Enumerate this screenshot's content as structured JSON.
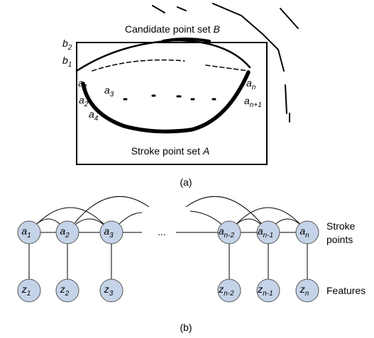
{
  "panel_a": {
    "candidate_label": {
      "text": "Candidate point set",
      "var": "B"
    },
    "stroke_label": {
      "text": "Stroke point set",
      "var": "A"
    },
    "point_labels": [
      {
        "base": "b",
        "sub": "2"
      },
      {
        "base": "b",
        "sub": "1"
      },
      {
        "base": "a",
        "sub": "1"
      },
      {
        "base": "a",
        "sub": "3"
      },
      {
        "base": "a",
        "sub": "2"
      },
      {
        "base": "a",
        "sub": "4"
      },
      {
        "base": "a",
        "sub": "n"
      },
      {
        "base": "a",
        "sub": "n+1"
      }
    ],
    "caption": "(a)"
  },
  "panel_b": {
    "stroke_nodes": [
      {
        "base": "a",
        "sub": "1"
      },
      {
        "base": "a",
        "sub": "2"
      },
      {
        "base": "a",
        "sub": "3"
      },
      {
        "base": "a",
        "sub": "n-2"
      },
      {
        "base": "a",
        "sub": "n-1"
      },
      {
        "base": "a",
        "sub": "n"
      }
    ],
    "feature_nodes": [
      {
        "base": "z",
        "sub": "1"
      },
      {
        "base": "z",
        "sub": "2"
      },
      {
        "base": "z",
        "sub": "3"
      },
      {
        "base": "z",
        "sub": "n-2"
      },
      {
        "base": "z",
        "sub": "n-1"
      },
      {
        "base": "z",
        "sub": "n"
      }
    ],
    "ellipsis": "...",
    "stroke_row_label": [
      "Stroke",
      "points"
    ],
    "feature_row_label": "Features",
    "caption": "(b)"
  }
}
